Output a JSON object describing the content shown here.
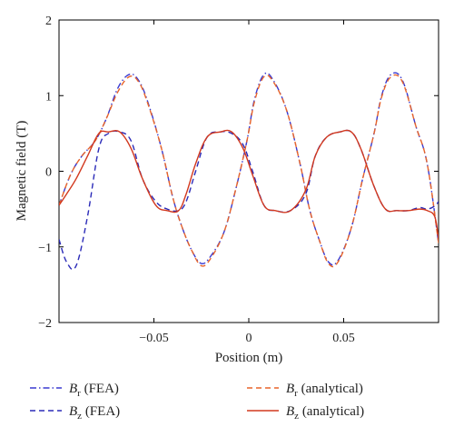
{
  "chart_data": {
    "type": "line",
    "xlabel": "Position (m)",
    "ylabel": "Magnetic field (T)",
    "xlim": [
      -0.1,
      0.1
    ],
    "ylim": [
      -2,
      2
    ],
    "x_ticks": [
      -0.05,
      0,
      0.05
    ],
    "x_tick_labels": [
      "−0.05",
      "0",
      "0.05"
    ],
    "y_ticks": [
      -2,
      -1,
      0,
      1,
      2
    ],
    "y_tick_labels": [
      "−2",
      "−1",
      "0",
      "1",
      "2"
    ],
    "grid": false,
    "legend_position": "bottom",
    "series": [
      {
        "id": "br_fea",
        "legend": {
          "symbol": "B",
          "subscript": "r",
          "suffix": " (FEA)"
        },
        "color": "#3a3ad0",
        "dash": "dashdot",
        "x": [
          -0.1,
          -0.094,
          -0.088,
          -0.081,
          -0.075,
          -0.069,
          -0.063,
          -0.058,
          -0.053,
          -0.046,
          -0.04,
          -0.035,
          -0.03,
          -0.025,
          -0.02,
          -0.013,
          -0.007,
          -0.001,
          0.003,
          0.008,
          0.013,
          0.02,
          0.027,
          0.032,
          0.037,
          0.042,
          0.047,
          0.054,
          0.06,
          0.066,
          0.07,
          0.075,
          0.081,
          0.088,
          0.094,
          0.1
        ],
        "y": [
          -0.45,
          -0.05,
          0.2,
          0.4,
          0.7,
          1.1,
          1.28,
          1.2,
          0.9,
          0.3,
          -0.35,
          -0.75,
          -1.05,
          -1.22,
          -1.12,
          -0.8,
          -0.25,
          0.4,
          0.95,
          1.28,
          1.2,
          0.8,
          0.1,
          -0.5,
          -0.9,
          -1.2,
          -1.18,
          -0.75,
          -0.1,
          0.5,
          1.0,
          1.28,
          1.2,
          0.6,
          0.1,
          -0.95
        ]
      },
      {
        "id": "br_analytical",
        "legend": {
          "symbol": "B",
          "subscript": "r",
          "suffix": " (analytical)"
        },
        "color": "#e8642a",
        "dash": "dashed",
        "x": [
          -0.1,
          -0.094,
          -0.088,
          -0.081,
          -0.075,
          -0.069,
          -0.063,
          -0.058,
          -0.053,
          -0.046,
          -0.04,
          -0.035,
          -0.03,
          -0.025,
          -0.02,
          -0.013,
          -0.007,
          -0.001,
          0.003,
          0.008,
          0.013,
          0.02,
          0.027,
          0.032,
          0.037,
          0.042,
          0.047,
          0.054,
          0.06,
          0.066,
          0.07,
          0.075,
          0.081,
          0.088,
          0.094,
          0.1
        ],
        "y": [
          -0.45,
          -0.05,
          0.2,
          0.4,
          0.7,
          1.05,
          1.25,
          1.18,
          0.88,
          0.3,
          -0.35,
          -0.75,
          -1.05,
          -1.25,
          -1.15,
          -0.8,
          -0.25,
          0.4,
          0.92,
          1.25,
          1.18,
          0.8,
          0.1,
          -0.5,
          -0.9,
          -1.22,
          -1.2,
          -0.75,
          -0.1,
          0.5,
          0.98,
          1.25,
          1.18,
          0.6,
          0.1,
          -0.95
        ]
      },
      {
        "id": "bz_fea",
        "legend": {
          "symbol": "B",
          "subscript": "z",
          "suffix": " (FEA)"
        },
        "color": "#2b2bb8",
        "dash": "dashed",
        "x": [
          -0.1,
          -0.096,
          -0.091,
          -0.085,
          -0.079,
          -0.074,
          -0.068,
          -0.062,
          -0.056,
          -0.049,
          -0.043,
          -0.037,
          -0.033,
          -0.028,
          -0.022,
          -0.015,
          -0.009,
          -0.003,
          0.002,
          0.008,
          0.014,
          0.022,
          0.03,
          0.035,
          0.041,
          0.048,
          0.054,
          0.059,
          0.066,
          0.072,
          0.078,
          0.084,
          0.09,
          0.094,
          0.098,
          0.1
        ],
        "y": [
          -0.9,
          -1.2,
          -1.25,
          -0.6,
          0.3,
          0.5,
          0.52,
          0.4,
          -0.1,
          -0.4,
          -0.5,
          -0.52,
          -0.4,
          0.0,
          0.45,
          0.52,
          0.5,
          0.35,
          0.0,
          -0.45,
          -0.52,
          -0.52,
          -0.3,
          0.2,
          0.45,
          0.52,
          0.52,
          0.3,
          -0.2,
          -0.5,
          -0.52,
          -0.52,
          -0.48,
          -0.5,
          -0.46,
          -0.4
        ]
      },
      {
        "id": "bz_analytical",
        "legend": {
          "symbol": "B",
          "subscript": "z",
          "suffix": " (analytical)"
        },
        "color": "#d2381e",
        "dash": "solid",
        "x": [
          -0.1,
          -0.096,
          -0.091,
          -0.085,
          -0.079,
          -0.074,
          -0.068,
          -0.062,
          -0.056,
          -0.049,
          -0.043,
          -0.037,
          -0.033,
          -0.028,
          -0.022,
          -0.015,
          -0.009,
          -0.003,
          0.002,
          0.008,
          0.014,
          0.022,
          0.03,
          0.035,
          0.041,
          0.048,
          0.054,
          0.059,
          0.066,
          0.072,
          0.078,
          0.084,
          0.09,
          0.094,
          0.098,
          0.1
        ],
        "y": [
          -0.45,
          -0.3,
          -0.1,
          0.2,
          0.5,
          0.52,
          0.52,
          0.3,
          -0.1,
          -0.45,
          -0.52,
          -0.52,
          -0.3,
          0.1,
          0.45,
          0.52,
          0.52,
          0.3,
          -0.05,
          -0.45,
          -0.52,
          -0.52,
          -0.25,
          0.2,
          0.45,
          0.52,
          0.52,
          0.3,
          -0.2,
          -0.5,
          -0.52,
          -0.52,
          -0.5,
          -0.52,
          -0.6,
          -0.9
        ]
      }
    ]
  }
}
